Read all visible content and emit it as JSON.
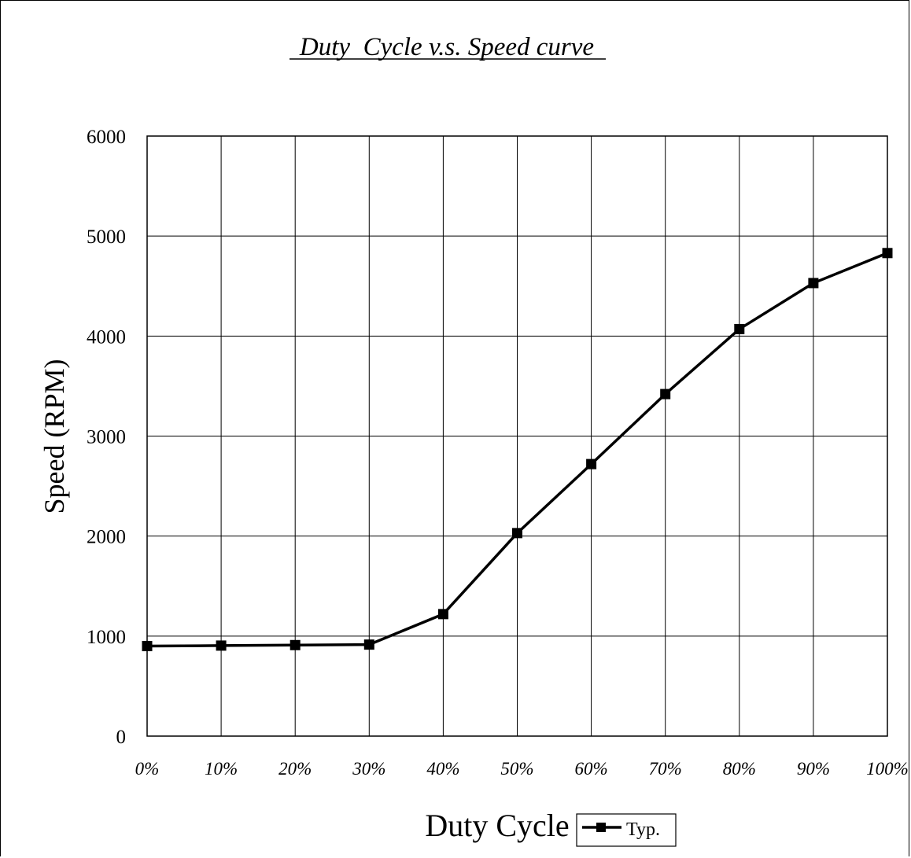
{
  "chart_data": {
    "type": "line",
    "title": "Duty  Cycle v.s. Speed curve",
    "xlabel": "Duty Cycle",
    "ylabel": "Speed (RPM)",
    "categories": [
      "0%",
      "10%",
      "20%",
      "30%",
      "40%",
      "50%",
      "60%",
      "70%",
      "80%",
      "90%",
      "100%"
    ],
    "y_ticks": [
      "0",
      "1000",
      "2000",
      "3000",
      "4000",
      "5000",
      "6000"
    ],
    "ylim": [
      0,
      6000
    ],
    "grid": true,
    "legend": "bottom",
    "series": [
      {
        "name": "Typ.",
        "color": "#000000",
        "marker": "square",
        "values": [
          900,
          905,
          910,
          915,
          1220,
          2030,
          2720,
          3420,
          4070,
          4530,
          4830
        ]
      }
    ]
  }
}
